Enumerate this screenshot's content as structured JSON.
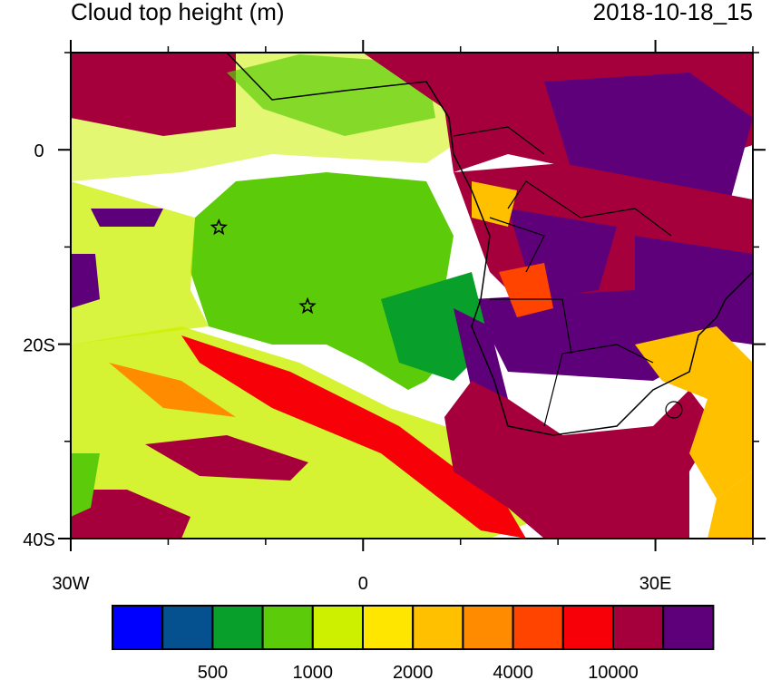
{
  "chart_data": {
    "type": "heatmap",
    "title": "Cloud top height (m)",
    "time_label": "2018-10-18_15",
    "lon_range": [
      -30,
      40
    ],
    "lat_range": [
      -40,
      10
    ],
    "x_ticks": [
      {
        "value": -30,
        "label": "30W"
      },
      {
        "value": 0,
        "label": "0"
      },
      {
        "value": 30,
        "label": "30E"
      }
    ],
    "y_ticks": [
      {
        "value": 0,
        "label": "0"
      },
      {
        "value": -20,
        "label": "20S"
      },
      {
        "value": -40,
        "label": "40S"
      }
    ],
    "colorbar": {
      "colors": [
        "#0000ff",
        "#05508f",
        "#08a02a",
        "#5ccc0a",
        "#ccf000",
        "#ffe600",
        "#ffc000",
        "#ff8c00",
        "#ff4400",
        "#f80008",
        "#a5003c",
        "#5e007a"
      ],
      "labels": [
        {
          "after_box": 2,
          "label": "500"
        },
        {
          "after_box": 4,
          "label": "1000"
        },
        {
          "after_box": 6,
          "label": "2000"
        },
        {
          "after_box": 8,
          "label": "4000"
        },
        {
          "after_box": 10,
          "label": "10000"
        }
      ]
    },
    "markers": [
      {
        "symbol": "star",
        "lon": -14.8,
        "lat": -8.0
      },
      {
        "symbol": "star",
        "lon": -5.7,
        "lat": -16.1
      }
    ]
  }
}
